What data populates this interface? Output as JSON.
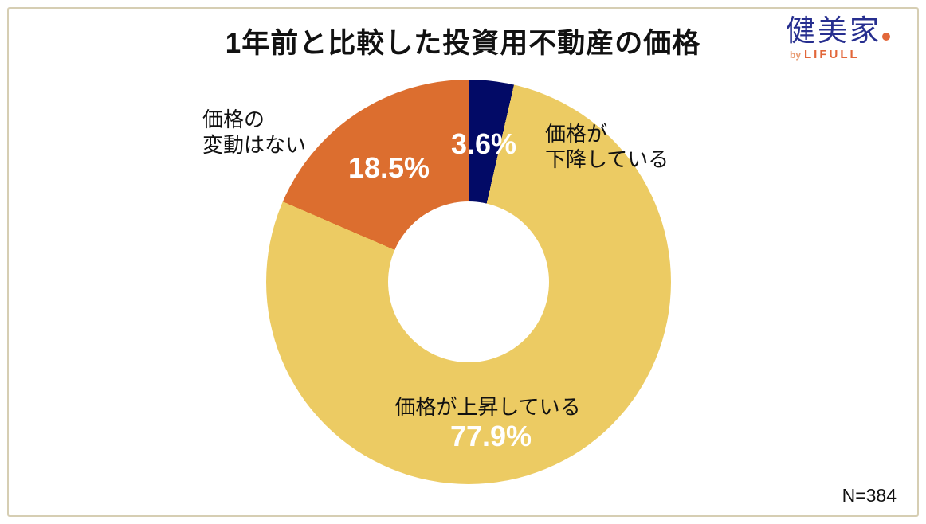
{
  "frame": {
    "border_color": "#D6CEB3"
  },
  "logo": {
    "brand": "健美家",
    "by": "by",
    "company": "LIFULL",
    "brand_color": "#262E8F",
    "accent_color": "#E2673A"
  },
  "chart_data": {
    "type": "pie",
    "subtype": "donut",
    "title": "1年前と比較した投資用不動産の価格",
    "start_angle_deg": 0,
    "direction": "clockwise",
    "inner_radius_ratio": 0.4,
    "segments": [
      {
        "label": "価格が下降している",
        "value": 3.6,
        "display": "3.6%",
        "color": "#020A66"
      },
      {
        "label": "価格が上昇している",
        "value": 77.9,
        "display": "77.9%",
        "color": "#ECCB63"
      },
      {
        "label": "価格の変動はない",
        "value": 18.5,
        "display": "18.5%",
        "color": "#DC6E2F"
      }
    ],
    "annotations": {
      "falling_label": "価格が\n下降している",
      "rising_label": "価格が上昇している",
      "no_change_label": "価格の\n変動はない"
    },
    "sample_size": "N=384"
  }
}
